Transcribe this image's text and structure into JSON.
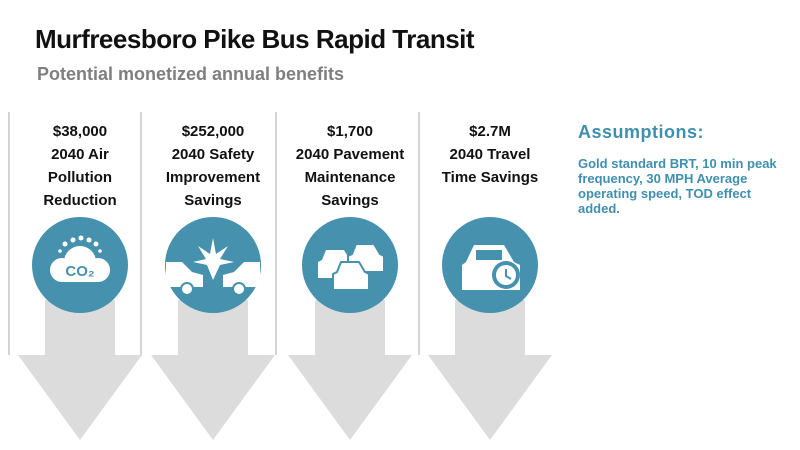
{
  "header": {
    "title": "Murfreesboro Pike Bus Rapid Transit",
    "subtitle": "Potential monetized annual benefits"
  },
  "benefits": [
    {
      "value": "$38,000",
      "label": "2040 Air Pollution Reduction",
      "icon_text": "CO₂"
    },
    {
      "value": "$252,000",
      "label": "2040 Safety Improvement Savings"
    },
    {
      "value": "$1,700",
      "label": "2040 Pavement Maintenance Savings"
    },
    {
      "value": "$2.7M",
      "label": "2040 Travel Time Savings"
    }
  ],
  "assumptions": {
    "title": "Assumptions:",
    "text": "Gold standard BRT, 10 min peak frequency, 30 MPH Average operating speed, TOD effect added."
  }
}
